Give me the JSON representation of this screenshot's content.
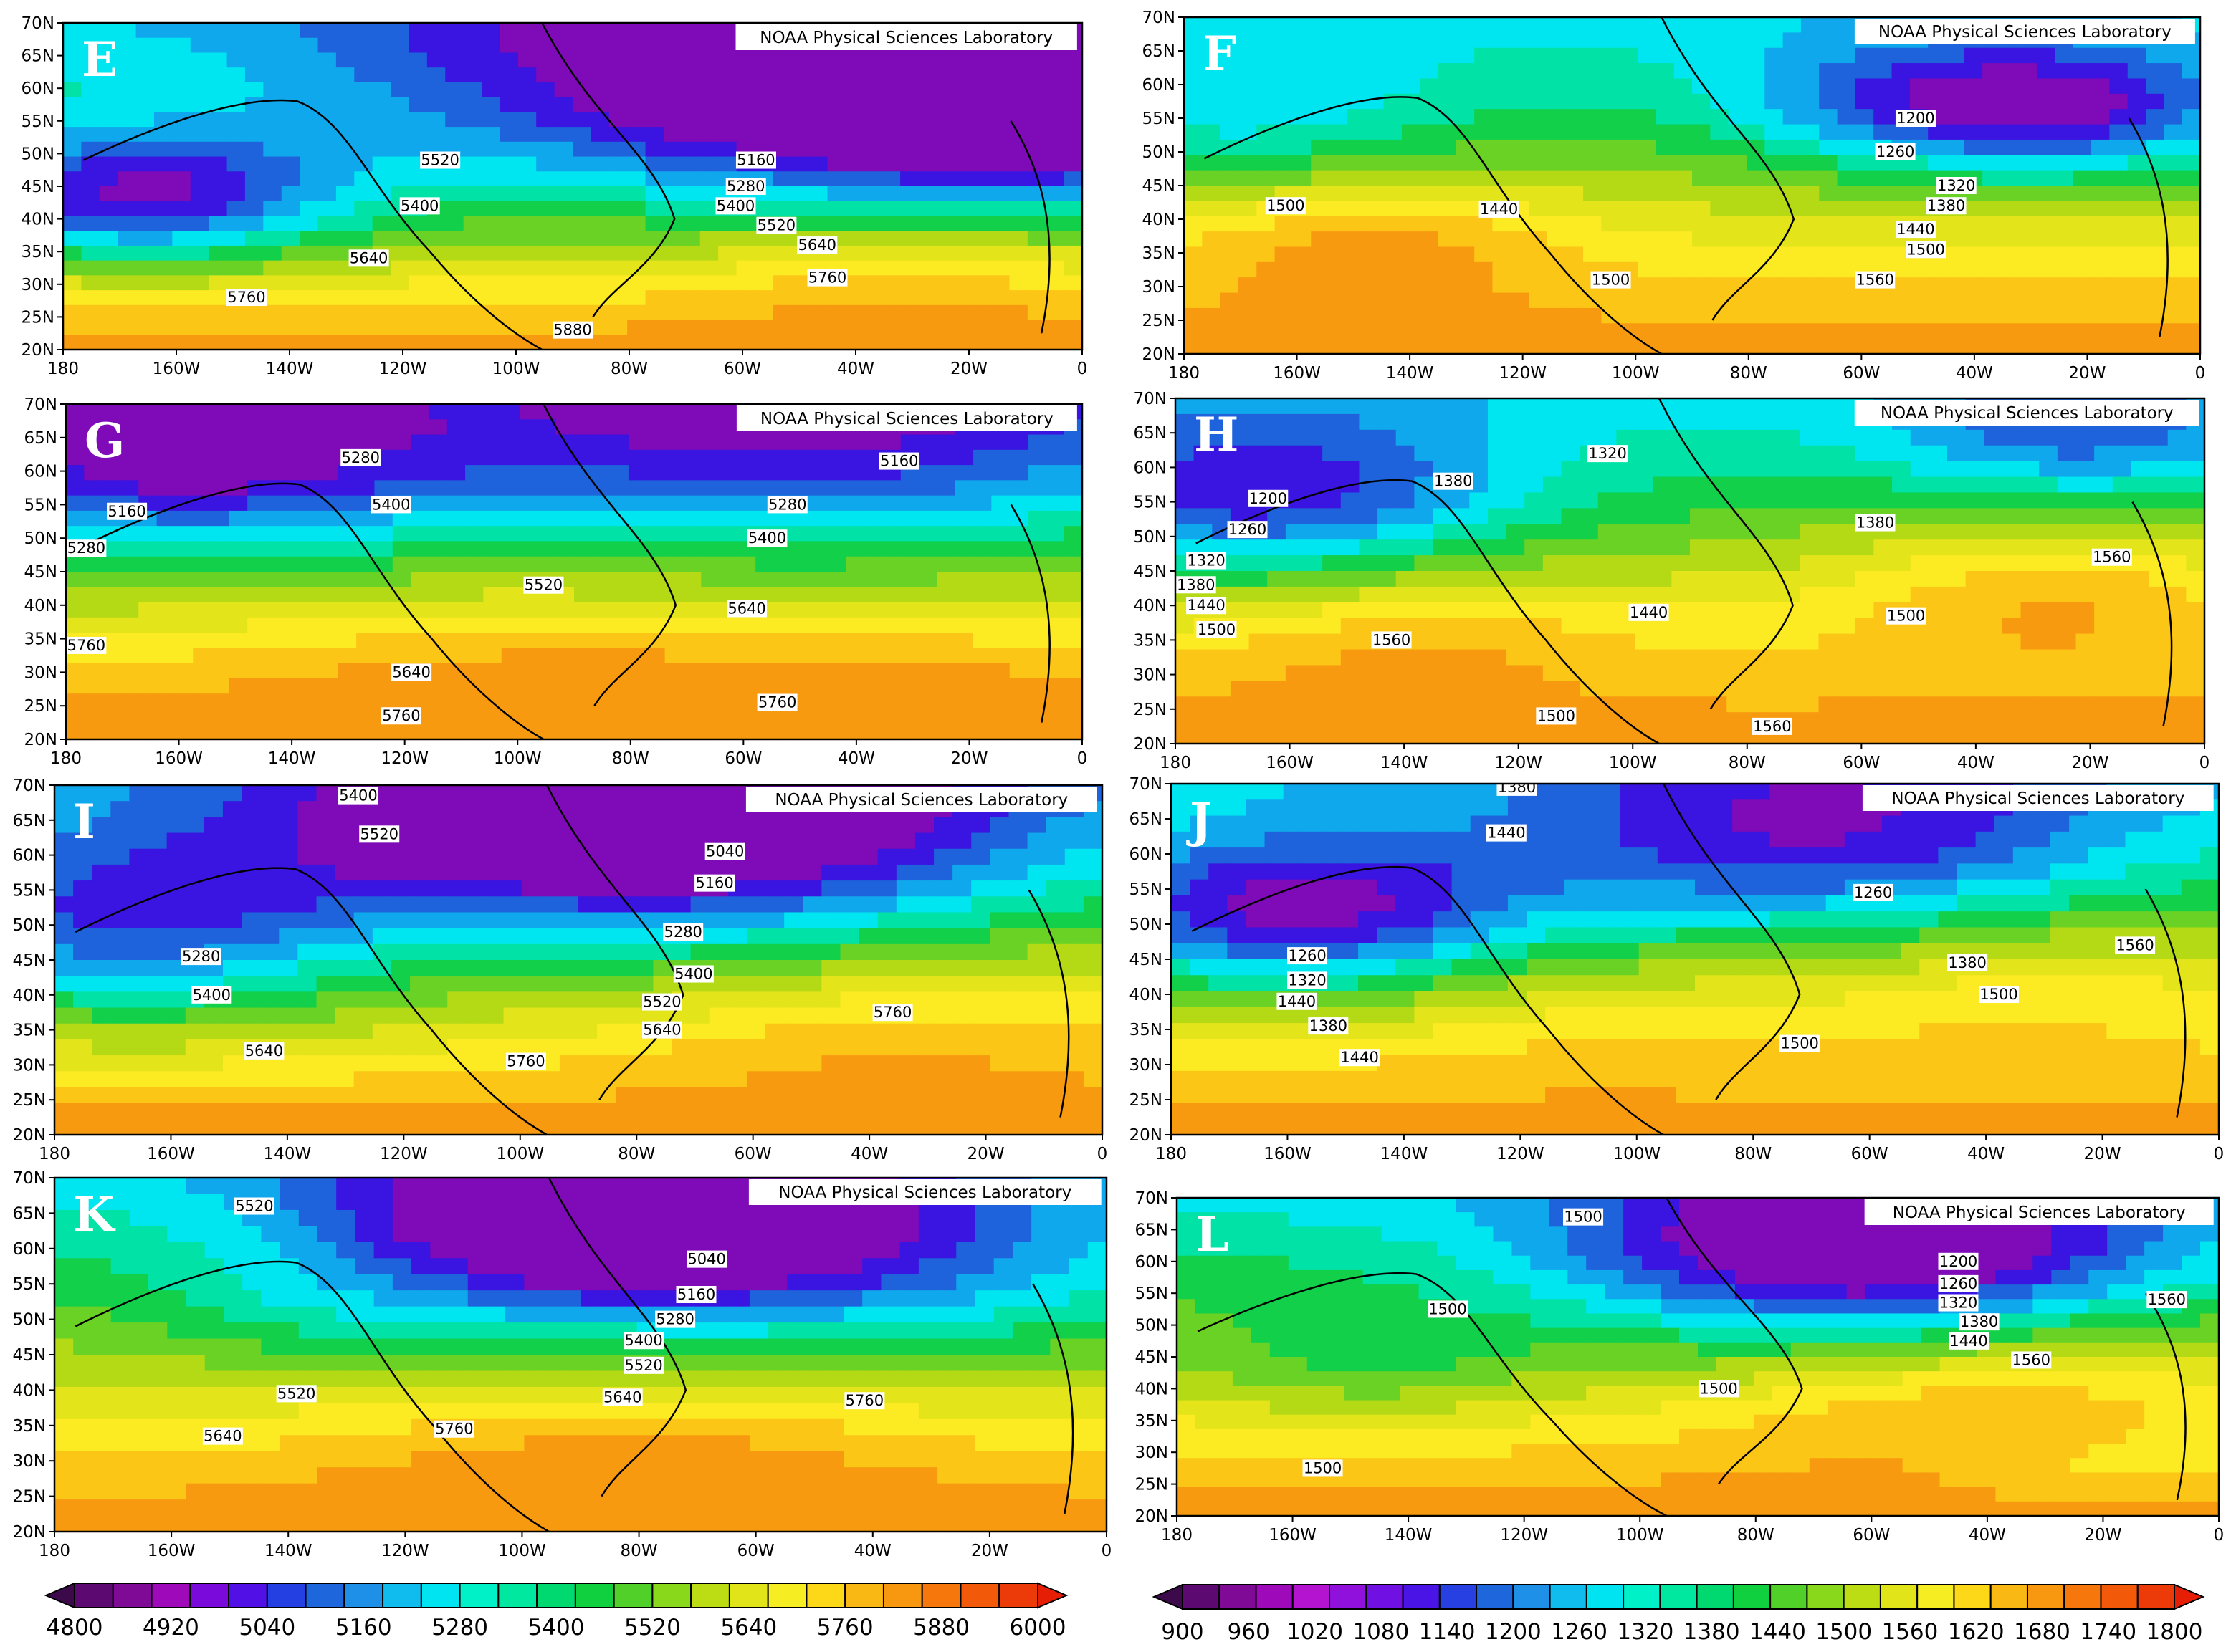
{
  "panels": [
    {
      "letter": "E",
      "credit": "NOAA Physical Sciences Laboratory",
      "field": "z500",
      "ylabels": [
        "70N",
        "65N",
        "60N",
        "55N",
        "50N",
        "45N",
        "40N",
        "35N",
        "30N",
        "25N",
        "20N"
      ],
      "xlabels": [
        "180",
        "160W",
        "140W",
        "120W",
        "100W",
        "80W",
        "60W",
        "40W",
        "20W",
        "0"
      ],
      "contour_labels": [
        "5160",
        "5400",
        "5280",
        "5520",
        "5400",
        "5520",
        "5640",
        "5640",
        "5760",
        "5760",
        "5880"
      ]
    },
    {
      "letter": "F",
      "credit": "NOAA Physical Sciences Laboratory",
      "field": "z850",
      "ylabels": [
        "70N",
        "65N",
        "60N",
        "55N",
        "50N",
        "45N",
        "40N",
        "35N",
        "30N",
        "25N",
        "20N"
      ],
      "xlabels": [
        "180",
        "160W",
        "140W",
        "120W",
        "100W",
        "80W",
        "60W",
        "40W",
        "20W",
        "0"
      ],
      "contour_labels": [
        "1200",
        "1260",
        "1320",
        "1380",
        "1440",
        "1500",
        "1440",
        "1500",
        "1500",
        "1560"
      ]
    },
    {
      "letter": "G",
      "credit": "NOAA Physical Sciences Laboratory",
      "field": "z500",
      "ylabels": [
        "70N",
        "65N",
        "60N",
        "55N",
        "50N",
        "45N",
        "40N",
        "35N",
        "30N",
        "25N",
        "20N"
      ],
      "xlabels": [
        "180",
        "160W",
        "140W",
        "120W",
        "100W",
        "80W",
        "60W",
        "40W",
        "20W",
        "0"
      ],
      "contour_labels": [
        "5280",
        "5160",
        "5160",
        "5400",
        "5280",
        "5280",
        "5400",
        "5520",
        "5640",
        "5760",
        "5640",
        "5760",
        "5760"
      ]
    },
    {
      "letter": "H",
      "credit": "NOAA Physical Sciences Laboratory",
      "field": "z850",
      "ylabels": [
        "70N",
        "65N",
        "60N",
        "55N",
        "50N",
        "45N",
        "40N",
        "35N",
        "30N",
        "25N",
        "20N"
      ],
      "xlabels": [
        "180",
        "160W",
        "140W",
        "120W",
        "100W",
        "80W",
        "60W",
        "40W",
        "20W",
        "0"
      ],
      "contour_labels": [
        "1320",
        "1380",
        "1200",
        "1260",
        "1380",
        "1320",
        "1380",
        "1440",
        "1500",
        "1560",
        "1440",
        "1500",
        "1560",
        "1500",
        "1560"
      ]
    },
    {
      "letter": "I",
      "credit": "NOAA Physical Sciences Laboratory",
      "field": "z500",
      "ylabels": [
        "70N",
        "65N",
        "60N",
        "55N",
        "50N",
        "45N",
        "40N",
        "35N",
        "30N",
        "25N",
        "20N"
      ],
      "xlabels": [
        "180",
        "160W",
        "140W",
        "120W",
        "100W",
        "80W",
        "60W",
        "40W",
        "20W",
        "0"
      ],
      "contour_labels": [
        "5400",
        "5520",
        "5040",
        "5160",
        "5280",
        "5280",
        "5400",
        "5400",
        "5520",
        "5640",
        "5640",
        "5760",
        "5760"
      ]
    },
    {
      "letter": "J",
      "credit": "NOAA Physical Sciences Laboratory",
      "field": "z850",
      "ylabels": [
        "70N",
        "65N",
        "60N",
        "55N",
        "50N",
        "45N",
        "40N",
        "35N",
        "30N",
        "25N",
        "20N"
      ],
      "xlabels": [
        "180",
        "160W",
        "140W",
        "120W",
        "100W",
        "80W",
        "60W",
        "40W",
        "20W",
        "0"
      ],
      "contour_labels": [
        "1380",
        "1440",
        "1260",
        "1260",
        "1320",
        "1380",
        "1440",
        "1500",
        "1380",
        "1440",
        "1500",
        "1560"
      ]
    },
    {
      "letter": "K",
      "credit": "NOAA Physical Sciences Laboratory",
      "field": "z500",
      "ylabels": [
        "70N",
        "65N",
        "60N",
        "55N",
        "50N",
        "45N",
        "40N",
        "35N",
        "30N",
        "25N",
        "20N"
      ],
      "xlabels": [
        "180",
        "160W",
        "140W",
        "120W",
        "100W",
        "80W",
        "60W",
        "40W",
        "20W",
        "0"
      ],
      "contour_labels": [
        "5520",
        "5040",
        "5160",
        "5280",
        "5400",
        "5520",
        "5520",
        "5640",
        "5640",
        "5760",
        "5760"
      ]
    },
    {
      "letter": "L",
      "credit": "NOAA Physical Sciences Laboratory",
      "field": "z850",
      "ylabels": [
        "70N",
        "65N",
        "60N",
        "55N",
        "50N",
        "45N",
        "40N",
        "35N",
        "30N",
        "25N",
        "20N"
      ],
      "xlabels": [
        "180",
        "160W",
        "140W",
        "120W",
        "100W",
        "80W",
        "60W",
        "40W",
        "20W",
        "0"
      ],
      "contour_labels": [
        "1500",
        "1200",
        "1260",
        "1320",
        "1380",
        "1440",
        "1500",
        "1500",
        "1560",
        "1560",
        "1500"
      ]
    }
  ],
  "colorbars": [
    {
      "name": "z500",
      "labels": [
        "4800",
        "4920",
        "5040",
        "5160",
        "5280",
        "5400",
        "5520",
        "5640",
        "5760",
        "5880",
        "6000"
      ],
      "colors": [
        "#3c0a4a",
        "#5c0a72",
        "#7e0a96",
        "#9e0aba",
        "#7a0adc",
        "#5010e6",
        "#2440e2",
        "#1e66dc",
        "#1e90e8",
        "#10bcee",
        "#00e4f2",
        "#00f0c8",
        "#00e8a0",
        "#00d870",
        "#10d040",
        "#50d028",
        "#8ad81c",
        "#bcdc14",
        "#e0e418",
        "#f6ee22",
        "#fcd818",
        "#fab814",
        "#f89810",
        "#f6780c",
        "#f25a0a",
        "#ec3a08",
        "#e61e06"
      ]
    },
    {
      "name": "z850",
      "labels": [
        "900",
        "960",
        "1020",
        "1080",
        "1140",
        "1200",
        "1260",
        "1320",
        "1380",
        "1440",
        "1500",
        "1560",
        "1620",
        "1680",
        "1740",
        "1800"
      ],
      "colors": [
        "#3c0a4a",
        "#5c0a72",
        "#7e0a96",
        "#9e0aba",
        "#b414d0",
        "#9010dc",
        "#7010e2",
        "#4a14e6",
        "#2640e2",
        "#1e66dc",
        "#1e90e8",
        "#10bcee",
        "#00e4f2",
        "#00f0c8",
        "#00e8a0",
        "#00d870",
        "#10d040",
        "#50d028",
        "#8ad81c",
        "#bcdc14",
        "#e0e418",
        "#f6ee22",
        "#fcd818",
        "#fab814",
        "#f89810",
        "#f6780c",
        "#f25a0a",
        "#ec3a08",
        "#e61e06"
      ]
    }
  ]
}
